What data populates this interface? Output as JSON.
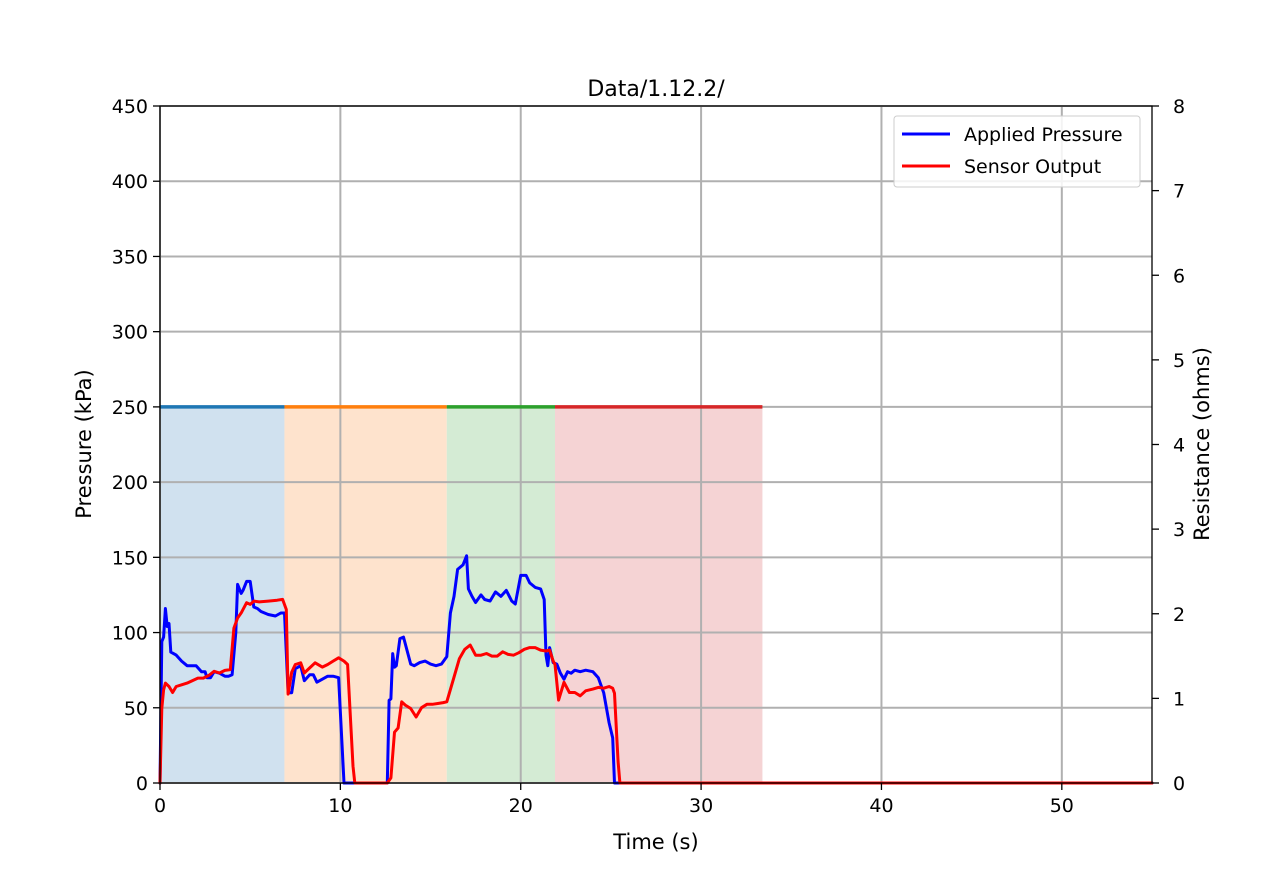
{
  "chart_data": {
    "type": "line",
    "title": "Data/1.12.2/",
    "xlabel": "Time (s)",
    "ylabel": "Pressure (kPa)",
    "y2label": "Resistance (ohms)",
    "xlim": [
      0,
      55
    ],
    "ylim": [
      0,
      450
    ],
    "y2lim": [
      0,
      8
    ],
    "xticks": [
      "0",
      "10",
      "20",
      "30",
      "40",
      "50"
    ],
    "yticks": [
      "0",
      "50",
      "100",
      "150",
      "200",
      "250",
      "300",
      "350",
      "400",
      "450"
    ],
    "y2ticks": [
      "0",
      "1",
      "2",
      "3",
      "4",
      "5",
      "6",
      "7",
      "8"
    ],
    "grid": true,
    "legend": {
      "placement": "top-right",
      "entries": [
        {
          "label": "Applied Pressure",
          "color": "#0000ff"
        },
        {
          "label": "Sensor Output",
          "color": "#ff0000"
        }
      ]
    },
    "regions": [
      {
        "x0": 0,
        "x1": 6.9,
        "level": 250,
        "line_color": "#1f77b4",
        "fill_color": "#d0e1ef"
      },
      {
        "x0": 6.9,
        "x1": 15.9,
        "level": 250,
        "line_color": "#ff7f0e",
        "fill_color": "#fee3cd"
      },
      {
        "x0": 15.9,
        "x1": 21.9,
        "level": 250,
        "line_color": "#2ca02c",
        "fill_color": "#d4ebd4"
      },
      {
        "x0": 21.9,
        "x1": 33.4,
        "level": 250,
        "line_color": "#d62728",
        "fill_color": "#f5d3d4"
      }
    ],
    "series": [
      {
        "name": "Applied Pressure",
        "axis": "left",
        "color": "#0000ff",
        "x": [
          0,
          0.1,
          0.2,
          0.3,
          0.4,
          0.5,
          0.6,
          0.9,
          1.2,
          1.5,
          2.0,
          2.3,
          2.5,
          2.6,
          2.8,
          3.0,
          3.3,
          3.6,
          3.8,
          4.0,
          4.2,
          4.3,
          4.4,
          4.5,
          4.6,
          4.8,
          5.0,
          5.2,
          5.4,
          5.6,
          6.0,
          6.4,
          6.7,
          6.9,
          7.1,
          7.3,
          7.5,
          7.8,
          8.0,
          8.3,
          8.5,
          8.7,
          9.0,
          9.3,
          9.6,
          9.9,
          10.2,
          10.4,
          10.6,
          10.7,
          10.8,
          12.5,
          12.6,
          12.7,
          12.8,
          12.9,
          13.0,
          13.1,
          13.3,
          13.5,
          13.7,
          13.9,
          14.1,
          14.4,
          14.7,
          15.0,
          15.3,
          15.6,
          15.9,
          16.1,
          16.3,
          16.5,
          16.8,
          17.0,
          17.1,
          17.3,
          17.5,
          17.8,
          18.0,
          18.3,
          18.6,
          18.9,
          19.2,
          19.5,
          19.7,
          20.0,
          20.3,
          20.5,
          20.8,
          21.1,
          21.3,
          21.4,
          21.5,
          21.6,
          21.8,
          22.0,
          22.2,
          22.4,
          22.6,
          22.8,
          23.0,
          23.3,
          23.6,
          24.0,
          24.3,
          24.6,
          24.9,
          25.1,
          25.2,
          25.3,
          25.4,
          25.5,
          25.6,
          55
        ],
        "y": [
          0,
          94,
          97,
          116,
          104,
          106,
          87,
          85,
          81,
          78,
          78,
          74,
          74,
          70,
          70,
          74,
          73,
          71,
          71,
          72,
          100,
          132,
          129,
          126,
          128,
          134,
          134,
          117,
          116,
          114,
          112,
          111,
          113,
          113,
          60,
          60,
          76,
          78,
          68,
          72,
          72,
          67,
          69,
          71,
          71,
          70,
          0,
          0,
          0,
          0,
          0,
          0,
          0,
          55,
          56,
          86,
          77,
          78,
          96,
          97,
          88,
          79,
          78,
          80,
          81,
          79,
          78,
          79,
          84,
          113,
          124,
          142,
          145,
          151,
          129,
          124,
          120,
          125,
          122,
          121,
          127,
          124,
          128,
          121,
          119,
          138,
          138,
          133,
          130,
          129,
          122,
          85,
          78,
          90,
          80,
          79,
          73,
          69,
          74,
          73,
          75,
          74,
          75,
          74,
          70,
          60,
          40,
          30,
          0,
          0,
          0,
          0,
          0,
          0
        ]
      },
      {
        "name": "Sensor Output",
        "axis": "right",
        "color": "#ff0000",
        "x": [
          0,
          0.1,
          0.2,
          0.3,
          0.5,
          0.7,
          0.9,
          1.2,
          1.5,
          1.8,
          2.1,
          2.4,
          2.7,
          3.0,
          3.3,
          3.6,
          3.9,
          4.1,
          4.3,
          4.5,
          4.8,
          5.0,
          5.2,
          5.5,
          6.0,
          6.5,
          6.8,
          7.0,
          7.1,
          7.3,
          7.5,
          7.8,
          8.0,
          8.3,
          8.6,
          9.0,
          9.3,
          9.6,
          9.9,
          10.2,
          10.4,
          10.6,
          10.7,
          10.8,
          12.6,
          12.8,
          13.0,
          13.2,
          13.4,
          13.6,
          13.9,
          14.2,
          14.5,
          14.8,
          15.1,
          15.4,
          15.7,
          15.9,
          16.3,
          16.6,
          16.9,
          17.2,
          17.5,
          17.8,
          18.1,
          18.4,
          18.7,
          19.0,
          19.3,
          19.6,
          19.9,
          20.2,
          20.5,
          20.8,
          21.1,
          21.4,
          21.6,
          21.8,
          21.9,
          22.1,
          22.4,
          22.7,
          23.0,
          23.3,
          23.6,
          24.0,
          24.3,
          24.6,
          24.9,
          25.1,
          25.2,
          25.3,
          25.4,
          25.5,
          25.6,
          55
        ],
        "y": [
          0,
          0.88,
          1.1,
          1.18,
          1.14,
          1.07,
          1.14,
          1.16,
          1.18,
          1.21,
          1.24,
          1.24,
          1.27,
          1.32,
          1.3,
          1.33,
          1.34,
          1.83,
          1.95,
          2.01,
          2.13,
          2.11,
          2.15,
          2.14,
          2.15,
          2.16,
          2.17,
          2.05,
          1.05,
          1.31,
          1.4,
          1.42,
          1.3,
          1.36,
          1.42,
          1.37,
          1.4,
          1.44,
          1.48,
          1.44,
          1.4,
          0.6,
          0.2,
          0,
          0,
          0.06,
          0.6,
          0.65,
          0.96,
          0.92,
          0.88,
          0.78,
          0.89,
          0.93,
          0.93,
          0.94,
          0.95,
          0.96,
          1.25,
          1.47,
          1.58,
          1.63,
          1.51,
          1.51,
          1.53,
          1.5,
          1.5,
          1.55,
          1.52,
          1.51,
          1.54,
          1.58,
          1.6,
          1.6,
          1.57,
          1.56,
          1.57,
          1.44,
          1.4,
          0.98,
          1.19,
          1.07,
          1.07,
          1.03,
          1.09,
          1.11,
          1.13,
          1.12,
          1.14,
          1.12,
          1.06,
          0.65,
          0.25,
          0,
          0,
          0
        ]
      }
    ]
  }
}
